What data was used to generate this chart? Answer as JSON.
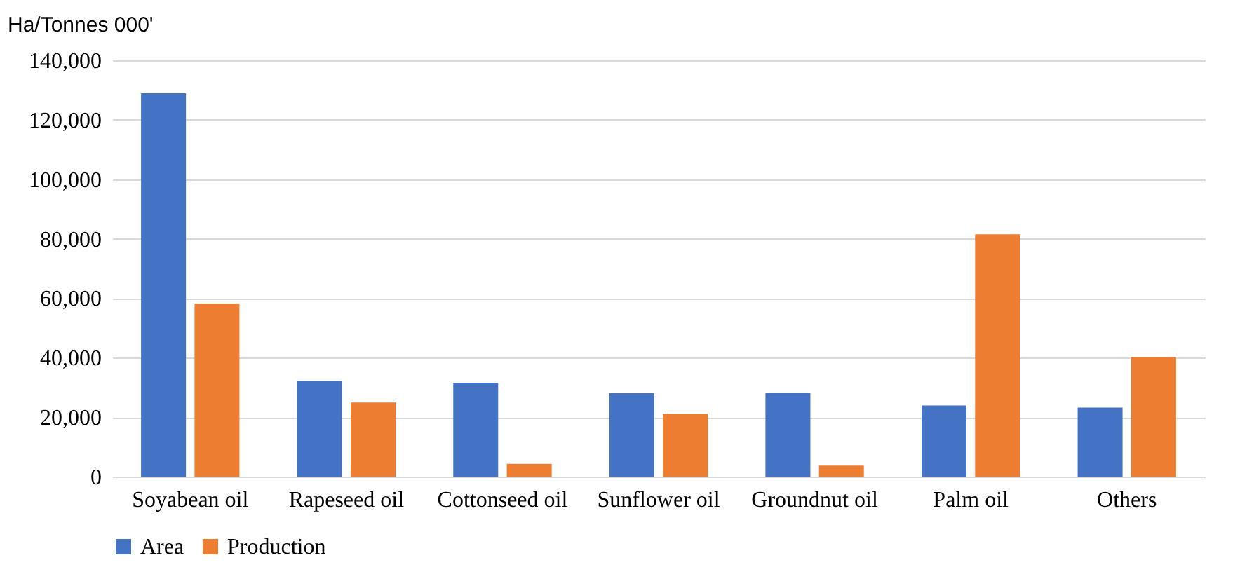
{
  "chart_data": {
    "type": "bar",
    "ylabel": "Ha/Tonnes 000'",
    "categories": [
      "Soyabean oil",
      "Rapeseed oil",
      "Cottonseed oil",
      "Sunflower oil",
      "Groundnut oil",
      "Palm oil",
      "Others"
    ],
    "series": [
      {
        "name": "Area",
        "color": "#4472c4",
        "values": [
          128900,
          32200,
          31600,
          28100,
          28200,
          23900,
          23200
        ]
      },
      {
        "name": "Production",
        "color": "#ed7d31",
        "values": [
          58200,
          24900,
          4300,
          21100,
          3700,
          81500,
          40200
        ]
      }
    ],
    "ylim": [
      0,
      140000
    ],
    "yticks": [
      0,
      {
        "value": 20000,
        "label": "20,000"
      },
      {
        "value": 40000,
        "label": "40,000"
      },
      {
        "value": 60000,
        "label": "60,000"
      },
      {
        "value": 80000,
        "label": "80,000"
      },
      {
        "value": 100000,
        "label": "100,000"
      },
      {
        "value": 120000,
        "label": "120,000"
      },
      {
        "value": 140000,
        "label": "140,000"
      }
    ],
    "grid": "y",
    "legend": "bottom"
  }
}
